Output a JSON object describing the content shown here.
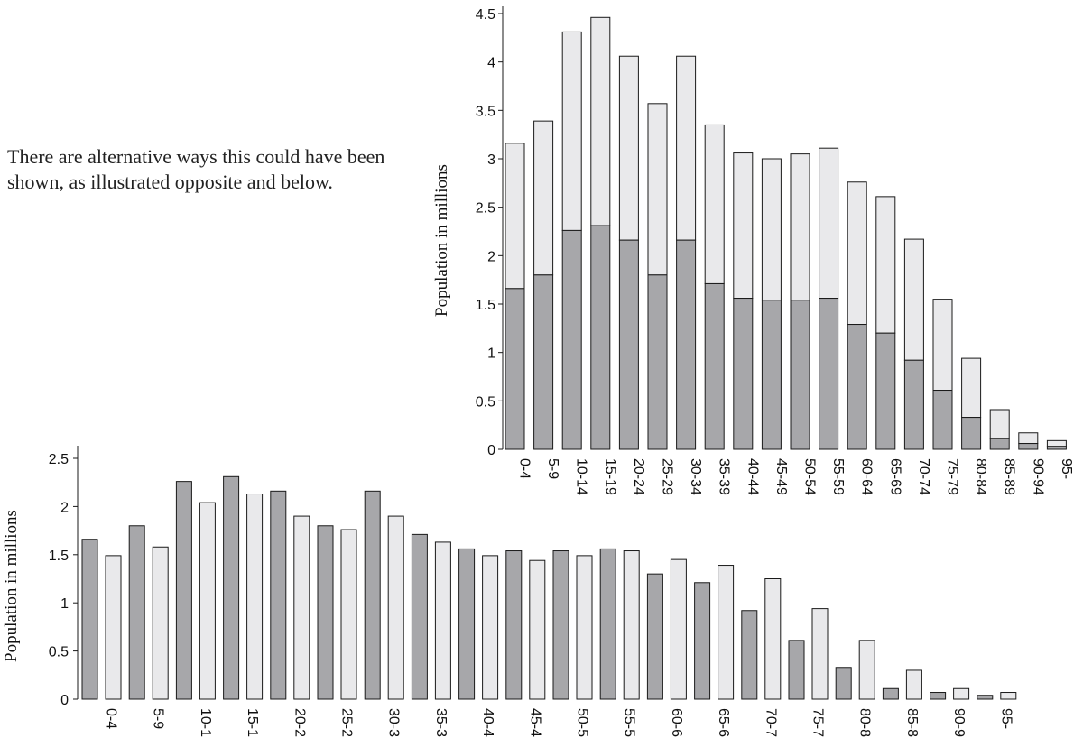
{
  "intro_text": "There are alternative ways this could have been shown, as  illustrated opposite and below.",
  "colors": {
    "dark": "#a7a7aa",
    "light": "#e9e9eb",
    "stroke": "#1a1a1a"
  },
  "chart_data": [
    {
      "type": "bar",
      "stacked": true,
      "title": "",
      "xlabel": "",
      "ylabel": "Population in millions",
      "ylim": [
        0,
        4.5
      ],
      "yticks": [
        "0",
        "0.5",
        "1",
        "1.5",
        "2",
        "2.5",
        "3",
        "3.5",
        "4",
        "4.5"
      ],
      "grid": false,
      "categories": [
        "0-4",
        "5-9",
        "10-14",
        "15-19",
        "20-24",
        "25-29",
        "30-34",
        "35-39",
        "40-44",
        "45-49",
        "50-54",
        "55-59",
        "60-64",
        "65-69",
        "70-74",
        "75-79",
        "80-84",
        "85-89",
        "90-94",
        "95-"
      ],
      "series": [
        {
          "color": "#a7a7aa",
          "values": [
            1.66,
            1.8,
            2.26,
            2.31,
            2.16,
            1.8,
            2.16,
            1.71,
            1.56,
            1.54,
            1.54,
            1.56,
            1.29,
            1.2,
            0.92,
            0.61,
            0.33,
            0.11,
            0.06,
            0.03
          ]
        },
        {
          "color": "#e9e9eb",
          "values": [
            1.5,
            1.59,
            2.05,
            2.15,
            1.9,
            1.77,
            1.9,
            1.64,
            1.5,
            1.46,
            1.51,
            1.55,
            1.47,
            1.41,
            1.25,
            0.94,
            0.61,
            0.3,
            0.11,
            0.06
          ]
        }
      ]
    },
    {
      "type": "bar",
      "stacked": false,
      "title": "",
      "xlabel": "",
      "ylabel": "Population in millions",
      "ylim": [
        0,
        2.5
      ],
      "yticks": [
        "0",
        "0.5",
        "1",
        "1.5",
        "2",
        "2.5"
      ],
      "grid": false,
      "categories": [
        "0-4",
        "5-9",
        "10-1",
        "15-1",
        "20-2",
        "25-2",
        "30-3",
        "35-3",
        "40-4",
        "45-4",
        "50-5",
        "55-5",
        "60-6",
        "65-6",
        "70-7",
        "75-7",
        "80-8",
        "85-8",
        "90-9",
        "95-"
      ],
      "series": [
        {
          "color": "#a7a7aa",
          "values": [
            1.66,
            1.8,
            2.26,
            2.31,
            2.16,
            1.8,
            2.16,
            1.71,
            1.56,
            1.54,
            1.54,
            1.56,
            1.3,
            1.21,
            0.92,
            0.61,
            0.33,
            0.11,
            0.07,
            0.04
          ]
        },
        {
          "color": "#e9e9eb",
          "values": [
            1.49,
            1.58,
            2.04,
            2.13,
            1.9,
            1.76,
            1.9,
            1.63,
            1.49,
            1.44,
            1.49,
            1.54,
            1.45,
            1.39,
            1.25,
            0.94,
            0.61,
            0.3,
            0.11,
            0.07
          ]
        }
      ]
    }
  ]
}
